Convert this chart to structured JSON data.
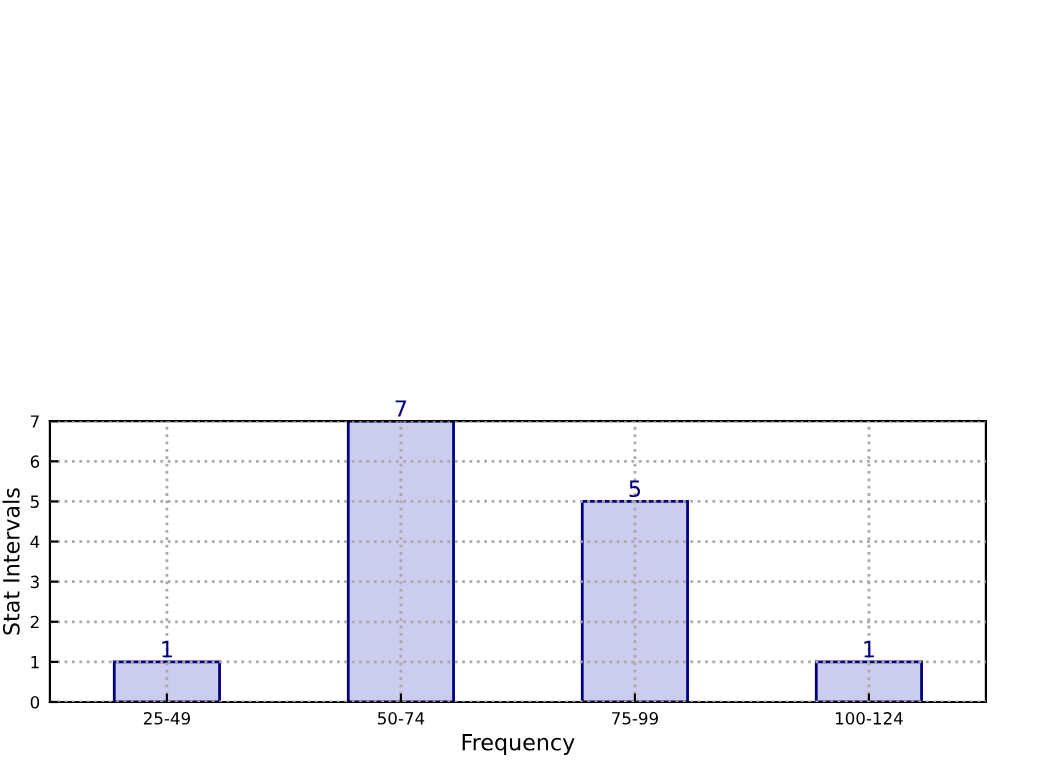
{
  "chart_data": {
    "type": "bar",
    "categories": [
      "25-49",
      "50-74",
      "75-99",
      "100-124"
    ],
    "values": [
      1,
      7,
      5,
      1
    ],
    "color": "#ccccee",
    "xlabel": "Frequency",
    "ylabel": "Stat Intervals",
    "ylim": [
      0,
      7
    ],
    "yticks": [
      0,
      1,
      2,
      3,
      4,
      5,
      6,
      7
    ],
    "grid": true,
    "data_labels": true
  }
}
